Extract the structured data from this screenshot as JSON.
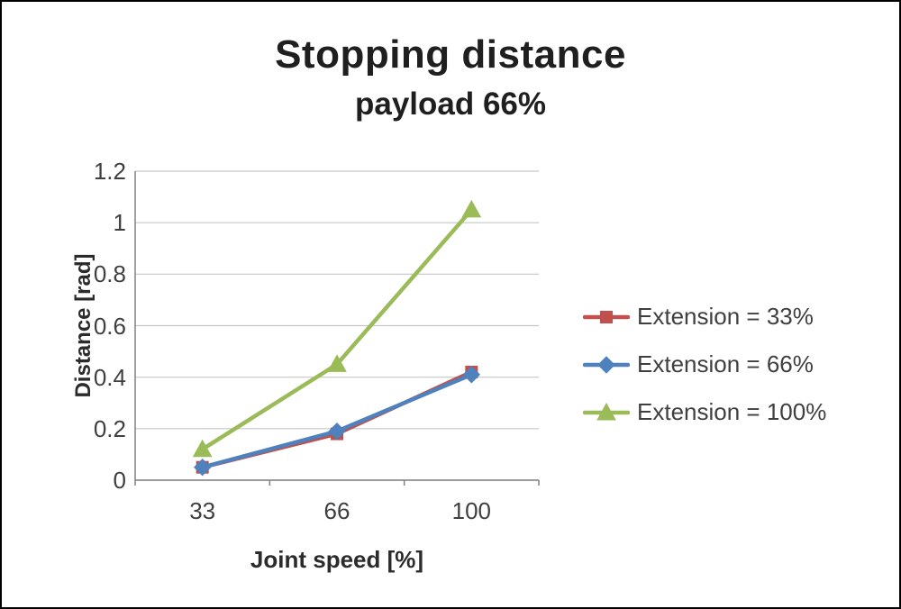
{
  "chart_data": {
    "type": "line",
    "title": "Stopping distance",
    "subtitle": "payload 66%",
    "xlabel": "Joint speed [%]",
    "ylabel": "Distance [rad]",
    "categories": [
      "33",
      "66",
      "100"
    ],
    "series": [
      {
        "name": "Extension = 33%",
        "values": [
          0.05,
          0.18,
          0.42
        ],
        "color": "#C0504D",
        "marker": "square"
      },
      {
        "name": "Extension = 66%",
        "values": [
          0.05,
          0.19,
          0.41
        ],
        "color": "#4F81BD",
        "marker": "diamond"
      },
      {
        "name": "Extension = 100%",
        "values": [
          0.12,
          0.45,
          1.05
        ],
        "color": "#9BBB59",
        "marker": "triangle"
      }
    ],
    "ylim": [
      0,
      1.2
    ],
    "yticks": [
      {
        "value": 0,
        "label": "0"
      },
      {
        "value": 0.2,
        "label": "0.2"
      },
      {
        "value": 0.4,
        "label": "0.4"
      },
      {
        "value": 0.6,
        "label": "0.6"
      },
      {
        "value": 0.8,
        "label": "0.8"
      },
      {
        "value": 1,
        "label": "1"
      },
      {
        "value": 1.2,
        "label": "1.2"
      }
    ],
    "grid": true,
    "legend_position": "right",
    "colors": {
      "grid": "#c6c6c6",
      "axis": "#808080",
      "text": "#3f3f3f"
    }
  }
}
